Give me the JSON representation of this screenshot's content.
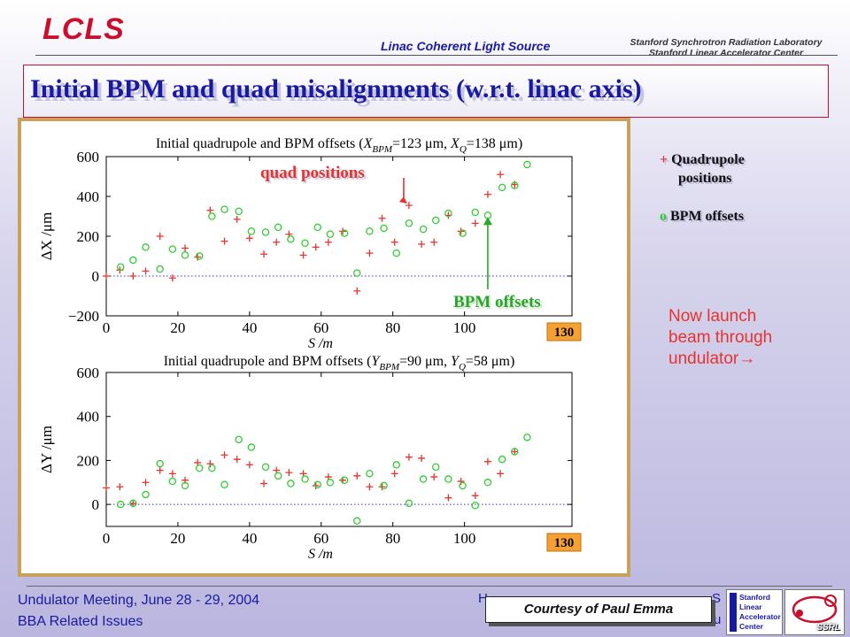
{
  "header": {
    "logo": "LCLS",
    "subtitle": "Linac Coherent Light Source",
    "org_line1": "Stanford Synchrotron Radiation Laboratory",
    "org_line2": "Stanford Linear Accelerator Center"
  },
  "slide": {
    "title": "Initial BPM and quad misalignments (w.r.t. linac axis)"
  },
  "legend": {
    "quad_line1": "Quadrupole",
    "quad_line2": "positions",
    "bpm": "BPM offsets",
    "quad_marker": "+",
    "bpm_marker": "o"
  },
  "note": "Now launch\nbeam through\nundulator→",
  "footer": {
    "meeting": "Undulator Meeting, June 28 - 29, 2004",
    "topic": "BBA Related Issues",
    "right_partial_1": "H",
    "right_partial_2": "S",
    "right_partial_3": "u",
    "courtesy": "Courtesy of Paul Emma",
    "slac_logo": "Stanford Linear Accelerator Center",
    "ssrl_logo": "SSRL"
  },
  "colors": {
    "title": "#1a1aa0",
    "accent_red": "#e8322e",
    "bpm_green": "#33cc33",
    "frame": "#c8a25a"
  },
  "chart_data": [
    {
      "type": "scatter",
      "title_parts": {
        "prefix": "Initial quadrupole and BPM offsets (",
        "bpm_sym": "X",
        "bpm_sub": "BPM",
        "bpm_val": "=123 μm, ",
        "q_sym": "X",
        "q_sub": "Q",
        "q_val": "=138 μm)"
      },
      "xlabel": "S /m",
      "ylabel": "ΔX /μm",
      "xlim": [
        0,
        130
      ],
      "ylim": [
        -200,
        600
      ],
      "xticks": [
        "0",
        "20",
        "40",
        "60",
        "80",
        "100"
      ],
      "yticks": [
        "600",
        "400",
        "200",
        "0",
        "−200"
      ],
      "end_tick_label": "130",
      "annotations": [
        "quad positions",
        "BPM offsets"
      ],
      "series": [
        {
          "name": "Quadrupole positions",
          "marker": "+",
          "color": "#e8322e",
          "x": [
            0,
            3.8,
            7.5,
            11,
            15,
            18.5,
            22,
            25.5,
            29,
            33,
            36.5,
            40,
            44,
            47.5,
            51,
            55,
            58.5,
            62,
            66,
            70,
            73.5,
            77,
            80.5,
            84.5,
            88,
            91.5,
            95.5,
            99,
            103,
            106.5,
            110,
            114
          ],
          "y": [
            0,
            30,
            0,
            25,
            200,
            -10,
            140,
            95,
            330,
            175,
            285,
            190,
            110,
            170,
            210,
            105,
            145,
            170,
            225,
            -75,
            115,
            290,
            170,
            355,
            160,
            170,
            305,
            225,
            265,
            410,
            510,
            460
          ]
        },
        {
          "name": "BPM offsets",
          "marker": "o",
          "color": "#33cc33",
          "x": [
            4,
            7.5,
            11,
            15,
            18.5,
            22,
            26,
            29.5,
            33,
            37,
            40.5,
            44.5,
            48,
            51.5,
            55.5,
            59,
            62.5,
            66.5,
            70,
            73.5,
            77.5,
            81,
            84.5,
            88.5,
            92,
            95.5,
            99.5,
            103,
            106.5,
            110.5,
            114,
            117.5
          ],
          "y": [
            45,
            80,
            145,
            35,
            135,
            105,
            100,
            300,
            335,
            325,
            225,
            220,
            245,
            185,
            165,
            245,
            210,
            215,
            15,
            225,
            240,
            115,
            265,
            235,
            280,
            315,
            215,
            320,
            305,
            445,
            455,
            560
          ]
        }
      ]
    },
    {
      "type": "scatter",
      "title_parts": {
        "prefix": "Initial quadrupole and BPM offsets (",
        "bpm_sym": "Y",
        "bpm_sub": "BPM",
        "bpm_val": "=90 μm, ",
        "q_sym": "Y",
        "q_sub": "Q",
        "q_val": "=58 μm)"
      },
      "xlabel": "S /m",
      "ylabel": "ΔY /μm",
      "xlim": [
        0,
        130
      ],
      "ylim": [
        -100,
        600
      ],
      "xticks": [
        "0",
        "20",
        "40",
        "60",
        "80",
        "100"
      ],
      "yticks": [
        "600",
        "400",
        "200",
        "0"
      ],
      "end_tick_label": "130",
      "series": [
        {
          "name": "Quadrupole positions",
          "marker": "+",
          "color": "#e8322e",
          "x": [
            0,
            3.8,
            7.5,
            11,
            15,
            18.5,
            22,
            25.5,
            29,
            33,
            36.5,
            40,
            44,
            47.5,
            51,
            55,
            58.5,
            62,
            66,
            70,
            73.5,
            77,
            80.5,
            84.5,
            88,
            91.5,
            95.5,
            99,
            103,
            106.5,
            110,
            114
          ],
          "y": [
            75,
            80,
            5,
            100,
            155,
            140,
            110,
            190,
            185,
            225,
            205,
            180,
            95,
            155,
            145,
            140,
            85,
            125,
            110,
            130,
            80,
            80,
            140,
            215,
            210,
            125,
            30,
            105,
            40,
            195,
            140,
            240
          ]
        },
        {
          "name": "BPM offsets",
          "marker": "o",
          "color": "#33cc33",
          "x": [
            4,
            7.5,
            11,
            15,
            18.5,
            22,
            26,
            29.5,
            33,
            37,
            40.5,
            44.5,
            48,
            51.5,
            55.5,
            59,
            62.5,
            66.5,
            70,
            73.5,
            77.5,
            81,
            84.5,
            88.5,
            92,
            95.5,
            99.5,
            103,
            106.5,
            110.5,
            114,
            117.5
          ],
          "y": [
            0,
            5,
            45,
            185,
            105,
            85,
            165,
            165,
            90,
            295,
            260,
            170,
            130,
            95,
            115,
            90,
            100,
            110,
            -75,
            140,
            85,
            180,
            5,
            115,
            170,
            115,
            85,
            -5,
            100,
            205,
            240,
            305
          ]
        }
      ]
    }
  ]
}
